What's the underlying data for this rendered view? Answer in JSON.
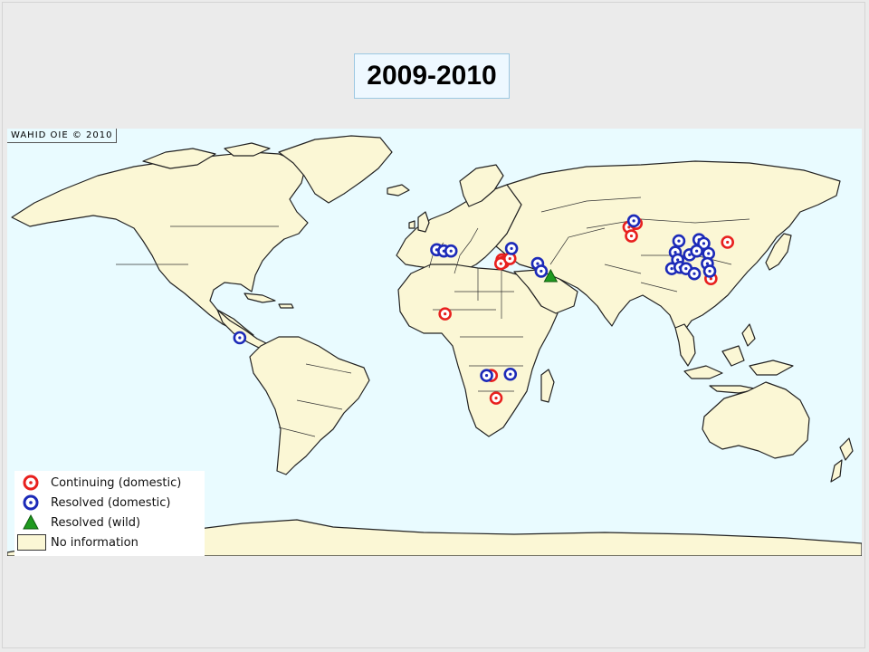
{
  "title": "2009-2010",
  "map": {
    "credit": "WAHID OIE © 2010",
    "colors": {
      "land": "#fbf7d5",
      "ocean": "#e9fbff",
      "border": "#222222",
      "continuing": "#e8201e",
      "resolved": "#1c2ab8",
      "wild": "#1f9a1f"
    },
    "legend": [
      {
        "key": "continuing",
        "label": "Continuing (domestic)",
        "icon": "red-ring-icon"
      },
      {
        "key": "resolved",
        "label": "Resolved (domestic)",
        "icon": "blue-ring-icon"
      },
      {
        "key": "wild",
        "label": "Resolved (wild)",
        "icon": "green-triangle-icon"
      },
      {
        "key": "noinfo",
        "label": "No information",
        "icon": "land-swatch-icon"
      }
    ],
    "outbreaks": [
      {
        "lon": 7.5,
        "lat": 9.5,
        "status": "continuing"
      },
      {
        "lon": 31.5,
        "lat": 31.0,
        "status": "continuing"
      },
      {
        "lon": 32.0,
        "lat": 30.0,
        "status": "continuing"
      },
      {
        "lon": 31.0,
        "lat": 29.5,
        "status": "continuing"
      },
      {
        "lon": 34.8,
        "lat": 31.5,
        "status": "continuing"
      },
      {
        "lon": 27.0,
        "lat": -15.0,
        "status": "continuing"
      },
      {
        "lon": 29.0,
        "lat": -24.0,
        "status": "continuing"
      },
      {
        "lon": 85.0,
        "lat": 44.0,
        "status": "continuing"
      },
      {
        "lon": 88.0,
        "lat": 45.5,
        "status": "continuing"
      },
      {
        "lon": 86.0,
        "lat": 40.5,
        "status": "continuing"
      },
      {
        "lon": 126.5,
        "lat": 38.0,
        "status": "continuing"
      },
      {
        "lon": 119.5,
        "lat": 23.5,
        "status": "continuing"
      },
      {
        "lon": 4.0,
        "lat": 35.0,
        "status": "resolved"
      },
      {
        "lon": 7.0,
        "lat": 34.5,
        "status": "resolved"
      },
      {
        "lon": 10.0,
        "lat": 34.5,
        "status": "resolved"
      },
      {
        "lon": 35.5,
        "lat": 35.5,
        "status": "resolved"
      },
      {
        "lon": 46.5,
        "lat": 29.5,
        "status": "resolved"
      },
      {
        "lon": 48.0,
        "lat": 26.5,
        "status": "resolved"
      },
      {
        "lon": -79.0,
        "lat": 0.0,
        "status": "resolved"
      },
      {
        "lon": 25.0,
        "lat": -15.0,
        "status": "resolved"
      },
      {
        "lon": 35.0,
        "lat": -14.5,
        "status": "resolved"
      },
      {
        "lon": 87.0,
        "lat": 46.5,
        "status": "resolved"
      },
      {
        "lon": 106.0,
        "lat": 38.5,
        "status": "resolved"
      },
      {
        "lon": 114.5,
        "lat": 39.0,
        "status": "resolved"
      },
      {
        "lon": 116.5,
        "lat": 37.5,
        "status": "resolved"
      },
      {
        "lon": 104.5,
        "lat": 34.0,
        "status": "resolved"
      },
      {
        "lon": 105.5,
        "lat": 31.0,
        "status": "resolved"
      },
      {
        "lon": 110.5,
        "lat": 33.0,
        "status": "resolved"
      },
      {
        "lon": 113.5,
        "lat": 34.5,
        "status": "resolved"
      },
      {
        "lon": 118.5,
        "lat": 33.5,
        "status": "resolved"
      },
      {
        "lon": 103.0,
        "lat": 27.5,
        "status": "resolved"
      },
      {
        "lon": 106.5,
        "lat": 28.0,
        "status": "resolved"
      },
      {
        "lon": 109.0,
        "lat": 27.5,
        "status": "resolved"
      },
      {
        "lon": 112.5,
        "lat": 25.5,
        "status": "resolved"
      },
      {
        "lon": 118.0,
        "lat": 29.5,
        "status": "resolved"
      },
      {
        "lon": 119.0,
        "lat": 26.5,
        "status": "resolved"
      },
      {
        "lon": 52.0,
        "lat": 24.5,
        "status": "wild"
      }
    ]
  }
}
